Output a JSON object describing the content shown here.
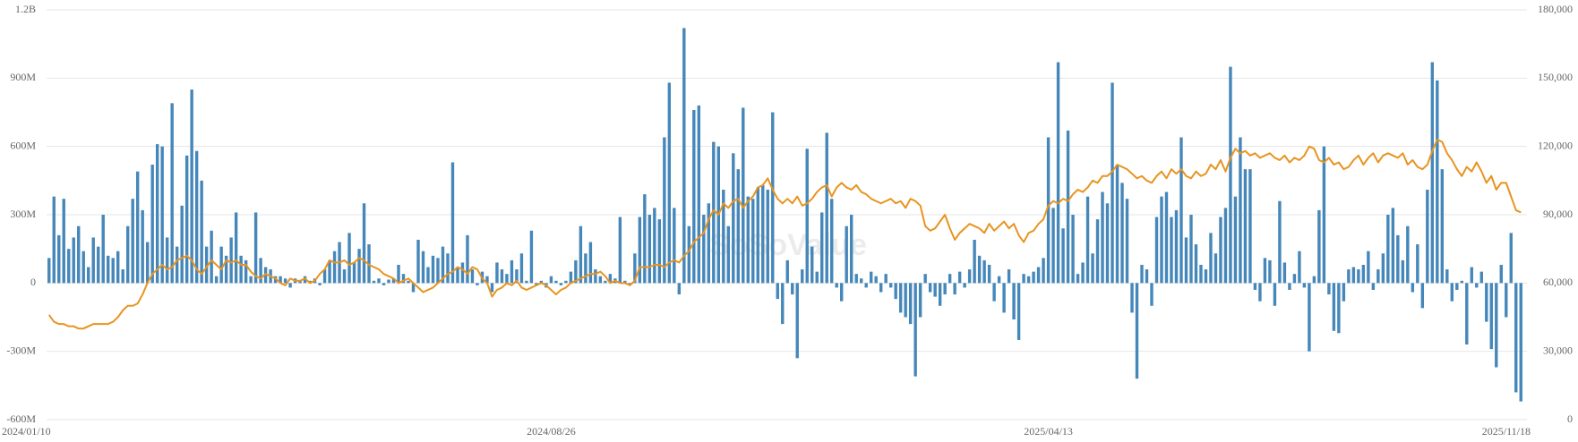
{
  "chart_data": {
    "type": "bar",
    "watermark": "SoSoValue",
    "categories": [
      "2024/01/10",
      null,
      null,
      null,
      null,
      null,
      null,
      null,
      null,
      null,
      null,
      null,
      null,
      null,
      null,
      null,
      null,
      null,
      null,
      null,
      null,
      null,
      null,
      null,
      null,
      null,
      null,
      null,
      null,
      null,
      null,
      null,
      null,
      null,
      null,
      null,
      null,
      null,
      null,
      null,
      null,
      null,
      null,
      null,
      null,
      null,
      null,
      null,
      null,
      null,
      null,
      null,
      null,
      null,
      null,
      null,
      null,
      null,
      null,
      null,
      null,
      null,
      null,
      null,
      null,
      null,
      null,
      null,
      null,
      null,
      null,
      null,
      null,
      null,
      null,
      null,
      null,
      null,
      null,
      null,
      null,
      null,
      null,
      null,
      null,
      null,
      null,
      null,
      null,
      null,
      null,
      null,
      null,
      null,
      null,
      null,
      null,
      null,
      null,
      null,
      null,
      null,
      "2024/08/26",
      null,
      null,
      null,
      null,
      null,
      null,
      null,
      null,
      null,
      null,
      null,
      null,
      null,
      null,
      null,
      null,
      null,
      null,
      null,
      null,
      null,
      null,
      null,
      null,
      null,
      null,
      null,
      null,
      null,
      null,
      null,
      null,
      null,
      null,
      null,
      null,
      null,
      null,
      null,
      null,
      null,
      null,
      null,
      null,
      null,
      null,
      null,
      null,
      null,
      null,
      null,
      null,
      null,
      null,
      null,
      null,
      null,
      null,
      null,
      null,
      null,
      null,
      null,
      null,
      null,
      null,
      null,
      null,
      null,
      null,
      null,
      null,
      null,
      null,
      null,
      null,
      null,
      null,
      null,
      null,
      null,
      null,
      null,
      null,
      null,
      null,
      null,
      null,
      null,
      null,
      null,
      null,
      null,
      null,
      null,
      null,
      null,
      null,
      null,
      null,
      "2025/04/13",
      null,
      null,
      null,
      null,
      null,
      null,
      null,
      null,
      null,
      null,
      null,
      null,
      null,
      null,
      null,
      null,
      null,
      null,
      null,
      null,
      null,
      null,
      null,
      null,
      null,
      null,
      null,
      null,
      null,
      null,
      null,
      null,
      null,
      null,
      null,
      null,
      null,
      null,
      null,
      null,
      null,
      null,
      null,
      null,
      null,
      null,
      null,
      null,
      null,
      null,
      null,
      null,
      null,
      null,
      null,
      null,
      null,
      null,
      null,
      null,
      null,
      null,
      null,
      null,
      null,
      null,
      null,
      null,
      null,
      null,
      null,
      null,
      null,
      null,
      null,
      null,
      null,
      null,
      null,
      null,
      null,
      null,
      null,
      null,
      null,
      null,
      null,
      null,
      null,
      null,
      null,
      null,
      null,
      null,
      null,
      "2025/11/18"
    ],
    "series": [
      {
        "type": "bar",
        "color": "#4687ba",
        "values": [
          110,
          380,
          210,
          370,
          150,
          200,
          250,
          140,
          70,
          200,
          160,
          300,
          120,
          110,
          140,
          60,
          250,
          370,
          490,
          320,
          180,
          520,
          610,
          600,
          200,
          790,
          160,
          340,
          560,
          850,
          580,
          450,
          160,
          230,
          30,
          160,
          120,
          200,
          310,
          120,
          100,
          30,
          310,
          110,
          70,
          60,
          30,
          30,
          20,
          -20,
          20,
          10,
          30,
          10,
          20,
          -10,
          60,
          100,
          140,
          180,
          60,
          220,
          90,
          150,
          350,
          170,
          10,
          20,
          -10,
          15,
          20,
          80,
          40,
          10,
          -40,
          190,
          140,
          70,
          120,
          110,
          160,
          130,
          530,
          70,
          90,
          210,
          60,
          -10,
          50,
          30,
          -40,
          90,
          60,
          40,
          100,
          60,
          130,
          10,
          230,
          -10,
          10,
          -20,
          30,
          10,
          -10,
          10,
          50,
          100,
          250,
          130,
          180,
          60,
          30,
          10,
          40,
          20,
          290,
          10,
          -5,
          130,
          290,
          390,
          300,
          330,
          280,
          640,
          880,
          330,
          -50,
          1120,
          250,
          760,
          780,
          300,
          350,
          620,
          600,
          410,
          250,
          570,
          500,
          770,
          380,
          370,
          420,
          430,
          410,
          750,
          -70,
          -180,
          100,
          -50,
          -330,
          60,
          590,
          160,
          50,
          310,
          660,
          370,
          -20,
          -80,
          250,
          300,
          40,
          20,
          -20,
          50,
          30,
          -40,
          40,
          -20,
          -70,
          -130,
          -150,
          -180,
          -410,
          -150,
          40,
          -40,
          -60,
          -100,
          -50,
          40,
          -50,
          50,
          -20,
          60,
          190,
          120,
          100,
          80,
          -80,
          30,
          -130,
          60,
          -160,
          -250,
          40,
          30,
          50,
          70,
          110,
          640,
          330,
          970,
          240,
          670,
          300,
          40,
          90,
          380,
          130,
          280,
          400,
          350,
          880,
          520,
          440,
          370,
          -130,
          -420,
          80,
          60,
          -100,
          290,
          380,
          400,
          290,
          320,
          640,
          200,
          300,
          170,
          80,
          60,
          220,
          130,
          290,
          330,
          950,
          380,
          640,
          500,
          500,
          -30,
          -80,
          110,
          100,
          -100,
          360,
          90,
          -30,
          40,
          140,
          -20,
          -300,
          30,
          320,
          600,
          -50,
          -210,
          -220,
          -80,
          60,
          70,
          60,
          80,
          140,
          -30,
          60,
          130,
          300,
          330,
          210,
          100,
          250,
          -40,
          170,
          -110,
          410,
          970,
          890,
          500,
          60,
          -80,
          -30,
          10,
          -270,
          70,
          -20,
          50,
          -170,
          -290,
          -370,
          80,
          -150,
          220,
          -480,
          -520
        ]
      },
      {
        "type": "line",
        "axis": "y2",
        "color": "#e8941f",
        "values": [
          46000,
          43000,
          42000,
          42000,
          41000,
          41000,
          40000,
          40000,
          41000,
          42000,
          42000,
          42000,
          42000,
          43000,
          45000,
          48000,
          50000,
          50000,
          51000,
          55000,
          60000,
          64000,
          66000,
          68000,
          66000,
          67000,
          70000,
          71000,
          72000,
          70000,
          66000,
          64000,
          67000,
          70000,
          68000,
          66000,
          70000,
          69000,
          70000,
          68000,
          68000,
          65000,
          63000,
          62000,
          64000,
          63000,
          62000,
          60000,
          59000,
          62000,
          61000,
          61000,
          62000,
          60000,
          61000,
          64000,
          66000,
          70000,
          69000,
          69000,
          70000,
          68000,
          69000,
          71000,
          70000,
          68000,
          67000,
          66000,
          64000,
          63000,
          62000,
          60000,
          61000,
          62000,
          60000,
          58000,
          56000,
          57000,
          58000,
          60000,
          62000,
          64000,
          65000,
          67000,
          66000,
          64000,
          67000,
          66000,
          62000,
          60000,
          54000,
          57000,
          58000,
          60000,
          59000,
          61000,
          58000,
          57000,
          58000,
          59000,
          60000,
          59000,
          57000,
          55000,
          57000,
          58000,
          60000,
          61000,
          62000,
          63000,
          64000,
          64000,
          65000,
          63000,
          60000,
          61000,
          60000,
          60000,
          59000,
          61000,
          67000,
          67000,
          67000,
          68000,
          68000,
          67000,
          69000,
          70000,
          69000,
          72000,
          74000,
          78000,
          80000,
          82000,
          88000,
          92000,
          90000,
          95000,
          93000,
          96000,
          97000,
          93000,
          96000,
          98000,
          102000,
          103000,
          106000,
          101000,
          97000,
          95000,
          97000,
          95000,
          98000,
          94000,
          95000,
          97000,
          100000,
          102000,
          103000,
          98000,
          102000,
          104000,
          102000,
          101000,
          103000,
          100000,
          99000,
          97000,
          96000,
          95000,
          96000,
          97000,
          95000,
          96000,
          93000,
          97000,
          96000,
          94000,
          85000,
          83000,
          84000,
          87000,
          90000,
          84000,
          79000,
          82000,
          84000,
          86000,
          85000,
          84000,
          82000,
          86000,
          83000,
          85000,
          87000,
          84000,
          86000,
          81000,
          78000,
          82000,
          83000,
          86000,
          88000,
          94000,
          96000,
          95000,
          97000,
          96000,
          99000,
          101000,
          100000,
          102000,
          105000,
          104000,
          107000,
          107000,
          109000,
          112000,
          111000,
          110000,
          108000,
          106000,
          107000,
          105000,
          104000,
          107000,
          109000,
          106000,
          110000,
          108000,
          110000,
          107000,
          106000,
          109000,
          107000,
          108000,
          112000,
          110000,
          114000,
          109000,
          115000,
          119000,
          117000,
          118000,
          116000,
          117000,
          115000,
          116000,
          117000,
          115000,
          114000,
          116000,
          113000,
          115000,
          114000,
          116000,
          120000,
          119000,
          114000,
          113000,
          115000,
          112000,
          113000,
          110000,
          111000,
          114000,
          116000,
          112000,
          115000,
          117000,
          113000,
          116000,
          117000,
          116000,
          115000,
          117000,
          112000,
          114000,
          111000,
          110000,
          112000,
          118000,
          123000,
          122000,
          117000,
          114000,
          110000,
          107000,
          111000,
          109000,
          113000,
          109000,
          104000,
          107000,
          101000,
          104000,
          104000,
          98000,
          92000,
          91000
        ]
      }
    ],
    "ylim": [
      -600,
      1200
    ],
    "yticks": [
      {
        "value": -600,
        "label": "-600M"
      },
      {
        "value": -300,
        "label": "-300M"
      },
      0,
      {
        "value": 300,
        "label": "300M"
      },
      {
        "value": 600,
        "label": "600M"
      },
      {
        "value": 900,
        "label": "900M"
      },
      {
        "value": 1200,
        "label": "1.2B"
      }
    ],
    "y2lim": [
      0,
      180000
    ],
    "y2ticks": [
      0,
      {
        "value": 30000,
        "label": "30,000"
      },
      {
        "value": 60000,
        "label": "60,000"
      },
      {
        "value": 90000,
        "label": "90,000"
      },
      {
        "value": 120000,
        "label": "120,000"
      },
      {
        "value": 150000,
        "label": "150,000"
      },
      {
        "value": 180000,
        "label": "180,000"
      }
    ],
    "grid": true
  }
}
